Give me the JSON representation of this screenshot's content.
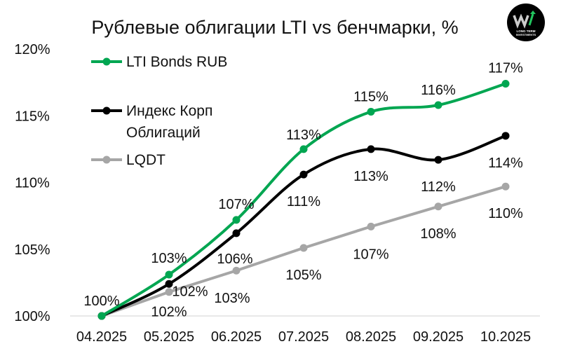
{
  "chart_data": {
    "type": "line",
    "title": "Рублевые облигации LTI vs бенчмарки, %",
    "xlabel": "",
    "ylabel": "",
    "categories": [
      "04.2025",
      "05.2025",
      "06.2025",
      "07.2025",
      "08.2025",
      "09.2025",
      "10.2025"
    ],
    "ylim": [
      100,
      120
    ],
    "yticks": [
      100,
      105,
      110,
      115,
      120
    ],
    "ytick_labels": [
      "100%",
      "105%",
      "110%",
      "115%",
      "120%"
    ],
    "grid": "baseline only",
    "legend_position": "top-left",
    "series": [
      {
        "name": "LTI Bonds RUB",
        "color": "#00A651",
        "smooth": true,
        "values": [
          100,
          103.1,
          107.2,
          112.5,
          115.3,
          115.8,
          117.4
        ],
        "labels": [
          "100%",
          "103%",
          "107%",
          "113%",
          "115%",
          "116%",
          "117%"
        ]
      },
      {
        "name": "Индекс Корп Облигаций",
        "legend_lines": [
          "Индекс Корп",
          "Облигаций"
        ],
        "color": "#000000",
        "smooth": true,
        "values": [
          100,
          102.4,
          106.2,
          110.6,
          112.5,
          111.7,
          113.5
        ],
        "labels": [
          "",
          "102%",
          "106%",
          "111%",
          "113%",
          "112%",
          "114%"
        ]
      },
      {
        "name": "LQDT",
        "color": "#A6A6A6",
        "smooth": false,
        "values": [
          100,
          101.8,
          103.4,
          105.1,
          106.7,
          108.2,
          109.7
        ],
        "labels": [
          "",
          "102%",
          "103%",
          "105%",
          "107%",
          "108%",
          "110%"
        ]
      }
    ]
  },
  "logo": {
    "text": "LONG TERM INVESTMENTS"
  }
}
